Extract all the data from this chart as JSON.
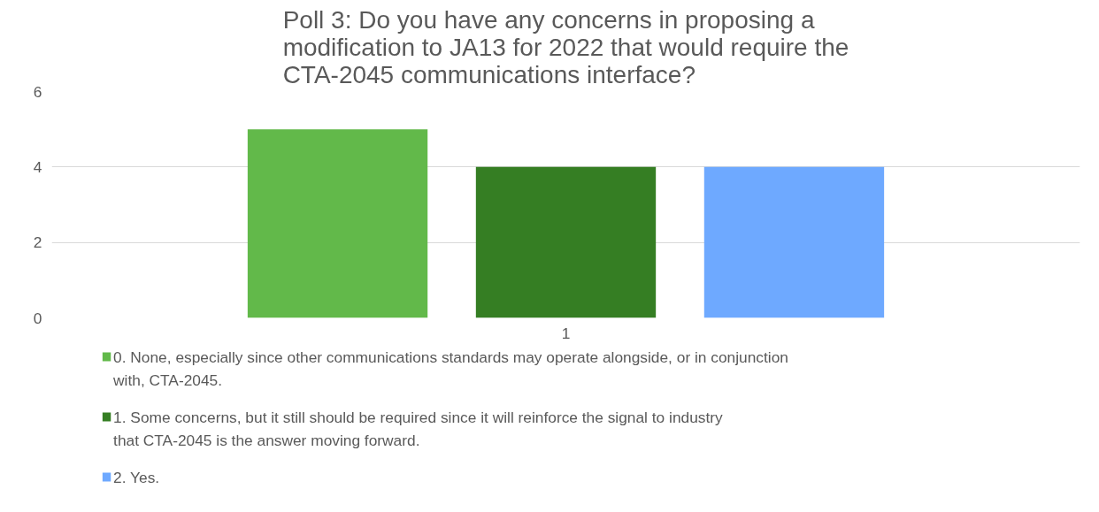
{
  "chart_data": {
    "type": "bar",
    "title": "Poll 3:  Do you have any concerns in proposing a modification to JA13 for 2022 that would require the CTA-2045 communications interface?",
    "categories": [
      "1"
    ],
    "series": [
      {
        "name": "0.   None, especially since other communications standards may operate alongside, or in conjunction with, CTA-2045.",
        "color": "#62b94a",
        "values": [
          5
        ]
      },
      {
        "name": "1.   Some concerns, but it still should be required since it will reinforce the signal to industry that CTA-2045 is the answer moving forward.",
        "color": "#357e23",
        "values": [
          4
        ]
      },
      {
        "name": "2.   Yes.",
        "color": "#6ea9ff",
        "values": [
          4
        ]
      }
    ],
    "ylim": [
      0,
      6
    ],
    "yticks": [
      0,
      2,
      4,
      6
    ],
    "grid": "y",
    "legend": "bottom"
  }
}
